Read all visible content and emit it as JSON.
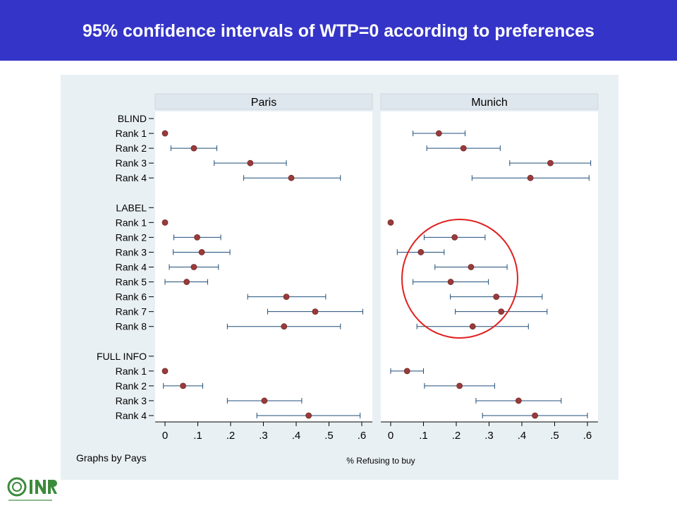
{
  "header": {
    "title": "95% confidence intervals of WTP=0 according to preferences"
  },
  "chart_data": {
    "type": "scatter",
    "subtype": "dot plot with 95% confidence interval error bars, two panels",
    "panels": [
      "Paris",
      "Munich"
    ],
    "xlabel": "% Refusing to buy",
    "xlim": [
      0,
      0.6
    ],
    "xticks": [
      "0",
      ".1",
      ".2",
      ".3",
      ".4",
      ".5",
      ".6"
    ],
    "note": "Graphs by Pays",
    "groups": [
      {
        "label": "BLIND",
        "rows": [
          {
            "label": "Rank 1",
            "Paris": {
              "est": 0.0,
              "lo": null,
              "hi": null
            },
            "Munich": {
              "est": 0.147,
              "lo": 0.068,
              "hi": 0.227
            }
          },
          {
            "label": "Rank 2",
            "Paris": {
              "est": 0.088,
              "lo": 0.018,
              "hi": 0.158
            },
            "Munich": {
              "est": 0.222,
              "lo": 0.11,
              "hi": 0.334
            }
          },
          {
            "label": "Rank 3",
            "Paris": {
              "est": 0.26,
              "lo": 0.15,
              "hi": 0.37
            },
            "Munich": {
              "est": 0.487,
              "lo": 0.363,
              "hi": 0.61
            }
          },
          {
            "label": "Rank 4",
            "Paris": {
              "est": 0.385,
              "lo": 0.24,
              "hi": 0.535
            },
            "Munich": {
              "est": 0.426,
              "lo": 0.248,
              "hi": 0.605
            }
          }
        ]
      },
      {
        "label": "LABEL",
        "rows": [
          {
            "label": "Rank 1",
            "Paris": {
              "est": 0.0,
              "lo": null,
              "hi": null
            },
            "Munich": {
              "est": 0.0,
              "lo": null,
              "hi": null
            }
          },
          {
            "label": "Rank 2",
            "Paris": {
              "est": 0.098,
              "lo": 0.027,
              "hi": 0.17
            },
            "Munich": {
              "est": 0.195,
              "lo": 0.102,
              "hi": 0.288
            }
          },
          {
            "label": "Rank 3",
            "Paris": {
              "est": 0.112,
              "lo": 0.025,
              "hi": 0.198
            },
            "Munich": {
              "est": 0.092,
              "lo": 0.02,
              "hi": 0.163
            }
          },
          {
            "label": "Rank 4",
            "Paris": {
              "est": 0.088,
              "lo": 0.013,
              "hi": 0.163
            },
            "Munich": {
              "est": 0.245,
              "lo": 0.135,
              "hi": 0.355
            }
          },
          {
            "label": "Rank 5",
            "Paris": {
              "est": 0.066,
              "lo": 0.0,
              "hi": 0.13
            },
            "Munich": {
              "est": 0.183,
              "lo": 0.068,
              "hi": 0.298
            }
          },
          {
            "label": "Rank 6",
            "Paris": {
              "est": 0.37,
              "lo": 0.252,
              "hi": 0.49
            },
            "Munich": {
              "est": 0.322,
              "lo": 0.182,
              "hi": 0.462
            }
          },
          {
            "label": "Rank 7",
            "Paris": {
              "est": 0.458,
              "lo": 0.313,
              "hi": 0.603
            },
            "Munich": {
              "est": 0.337,
              "lo": 0.197,
              "hi": 0.477
            }
          },
          {
            "label": "Rank 8",
            "Paris": {
              "est": 0.363,
              "lo": 0.19,
              "hi": 0.535
            },
            "Munich": {
              "est": 0.25,
              "lo": 0.08,
              "hi": 0.42
            }
          }
        ]
      },
      {
        "label": "FULL INFO",
        "rows": [
          {
            "label": "Rank 1",
            "Paris": {
              "est": 0.0,
              "lo": null,
              "hi": null
            },
            "Munich": {
              "est": 0.05,
              "lo": 0.0,
              "hi": 0.1
            }
          },
          {
            "label": "Rank 2",
            "Paris": {
              "est": 0.055,
              "lo": -0.005,
              "hi": 0.115
            },
            "Munich": {
              "est": 0.21,
              "lo": 0.103,
              "hi": 0.317
            }
          },
          {
            "label": "Rank 3",
            "Paris": {
              "est": 0.303,
              "lo": 0.19,
              "hi": 0.417
            },
            "Munich": {
              "est": 0.39,
              "lo": 0.26,
              "hi": 0.52
            }
          },
          {
            "label": "Rank 4",
            "Paris": {
              "est": 0.438,
              "lo": 0.28,
              "hi": 0.595
            },
            "Munich": {
              "est": 0.44,
              "lo": 0.28,
              "hi": 0.6
            }
          }
        ]
      }
    ],
    "annotation": {
      "shape": "circle",
      "color": "#e02020",
      "panel": "Munich",
      "encloses": "LABEL Rank 2 - Rank 8"
    },
    "colors": {
      "marker": "#9b3a3a",
      "whisker": "#1f4e79",
      "strip": "#e6edf2",
      "panel": "#ffffff",
      "frame": "#e9f0f4"
    }
  },
  "logo": {
    "name": "INRA",
    "alt": "INRA logo"
  }
}
